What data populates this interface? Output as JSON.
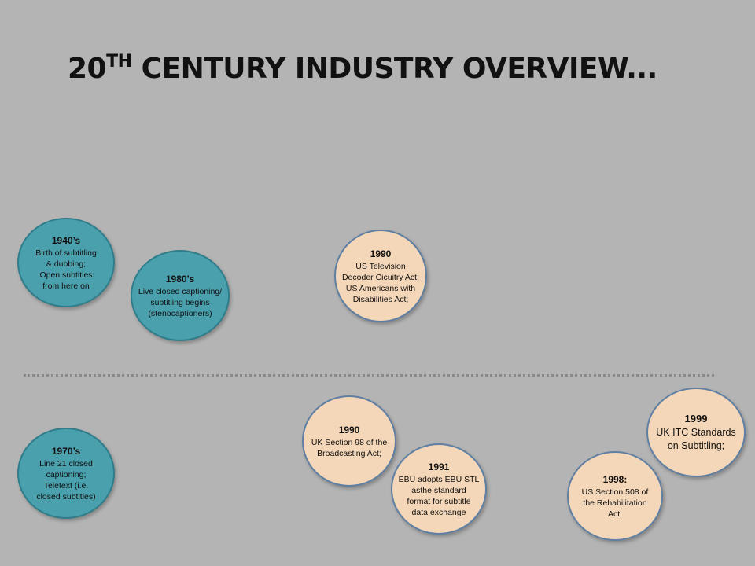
{
  "title": {
    "prefix": "20",
    "superscript": "TH",
    "suffix": " CENTURY INDUSTRY OVERVIEW..."
  },
  "events": [
    {
      "year": "1940’s",
      "text": "Birth of subtitling\n& dubbing;\nOpen subtitles\nfrom here on"
    },
    {
      "year": "1980’s",
      "text": "Live closed captioning/\nsubtitling begins\n(stenocaptioners)"
    },
    {
      "year": "1990",
      "text": "US Television\nDecoder Cicuitry Act;\nUS Americans with\nDisabilities Act;"
    },
    {
      "year": "1970’s",
      "text": "Line 21 closed\ncaptioning;\nTeletext (i.e.\nclosed subtitles)"
    },
    {
      "year": "1990",
      "text": "UK Section 98 of the\nBroadcasting Act;"
    },
    {
      "year": "1991",
      "text": "EBU adopts EBU STL\nasthe standard\nformat for subtitle\ndata exchange"
    },
    {
      "year": "1998:",
      "text": "US Section 508 of\nthe Rehabilitation\nAct;"
    },
    {
      "year": "1999",
      "text": "UK ITC Standards\non Subtitling;"
    }
  ],
  "colors": {
    "background": "#b4b4b4",
    "teal_bubble": "#4aa0ad",
    "peach_bubble": "#f4d6b8"
  }
}
